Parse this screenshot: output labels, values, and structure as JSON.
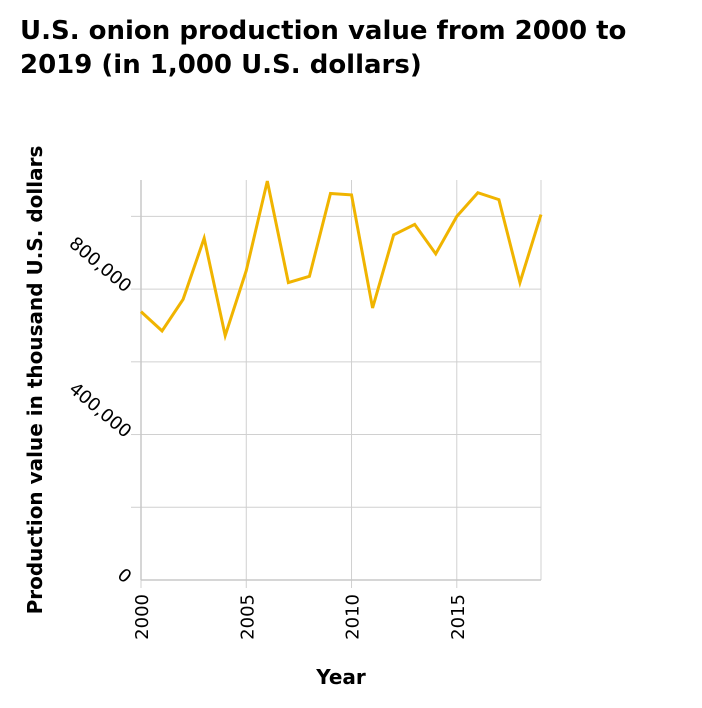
{
  "chart_data": {
    "type": "line",
    "title": "U.S. onion production value from 2000 to 2019 (in 1,000 U.S. dollars)",
    "xlabel": "Year",
    "ylabel": "Production value in thousand U.S. dollars",
    "xlim": [
      2000,
      2019
    ],
    "ylim": [
      0,
      1100000
    ],
    "x_ticks": [
      2000,
      2005,
      2010,
      2015
    ],
    "x_tick_labels": [
      "2000",
      "2005",
      "2010",
      "2015"
    ],
    "y_ticks": [
      0,
      200000,
      400000,
      600000,
      800000,
      1000000
    ],
    "y_tick_labels": [
      "0",
      "",
      "400,000",
      "",
      "800,000",
      ""
    ],
    "grid": true,
    "series": [
      {
        "color": "#f0b400",
        "x": [
          2000,
          2001,
          2002,
          2003,
          2004,
          2005,
          2006,
          2007,
          2008,
          2009,
          2010,
          2011,
          2012,
          2013,
          2014,
          2015,
          2016,
          2017,
          2018,
          2019
        ],
        "values": [
          738000,
          685000,
          772000,
          940000,
          672000,
          851000,
          1097000,
          818000,
          835000,
          1063000,
          1059000,
          748000,
          949000,
          978000,
          897000,
          1000000,
          1065000,
          1046000,
          818000,
          1005000
        ]
      }
    ]
  }
}
